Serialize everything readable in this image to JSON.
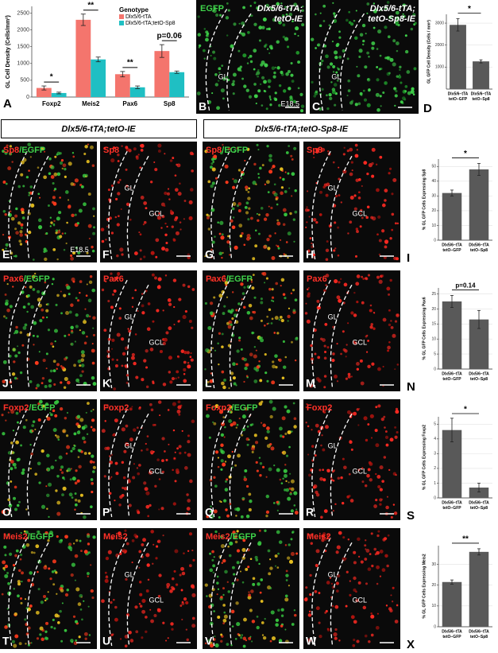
{
  "chart_data": [
    {
      "type": "bar",
      "panel": "A",
      "ylabel": "GL Cell Density (Cells/mm²)",
      "categories": [
        "Foxp2",
        "Meis2",
        "Pax6",
        "Sp8"
      ],
      "series": [
        {
          "name": "Dlx5/6-tTA",
          "color": "#f4756d",
          "values": [
            270,
            2300,
            680,
            1370
          ],
          "errors": [
            60,
            170,
            80,
            190
          ]
        },
        {
          "name": "Dlx5/6-tTA;tetO-Sp8",
          "color": "#1fbfc3",
          "values": [
            120,
            1120,
            290,
            740
          ],
          "errors": [
            25,
            70,
            40,
            35
          ]
        }
      ],
      "annotations": [
        "*",
        "**",
        "**",
        "p=0.06"
      ],
      "legend_title": "Genotype",
      "legend": "top-right",
      "ylim": [
        0,
        2700
      ],
      "yticks": [
        0,
        500,
        1000,
        1500,
        2000,
        2500
      ],
      "grid": false
    },
    {
      "type": "bar",
      "panel": "D",
      "ylabel": "GL GFP Cell Density (Cells / mm²)",
      "categories": [
        [
          "Dlx5/6−tTA",
          "tetO−GFP"
        ],
        [
          "Dlx5/6−tTA",
          "tetO−Sp8"
        ]
      ],
      "values": [
        2920,
        1260
      ],
      "errors": [
        280,
        70
      ],
      "color": "#595959",
      "annotation": "*",
      "ylim": [
        0,
        3400
      ],
      "yticks": [
        1000,
        2000,
        3000
      ],
      "grid": true
    },
    {
      "type": "bar",
      "panel": "I",
      "ylabel": "% GL GFP Cells Expressing Sp8",
      "categories": [
        [
          "Dlx5/6−tTA",
          "tetO−GFP"
        ],
        [
          "Dlx5/6−tTA",
          "tetO−Sp8"
        ]
      ],
      "values": [
        32,
        48
      ],
      "errors": [
        2,
        4
      ],
      "color": "#595959",
      "annotation": "*",
      "ylim": [
        0,
        55
      ],
      "yticks": [
        0,
        10,
        20,
        30,
        40,
        50
      ],
      "grid": true
    },
    {
      "type": "bar",
      "panel": "N",
      "ylabel": "% GL GFP Cells Expressing Pax6",
      "categories": [
        [
          "Dlx5/6−tTA",
          "tetO−GFP"
        ],
        [
          "Dlx5/6−tTA",
          "tetO−Sp8"
        ]
      ],
      "values": [
        22.5,
        16.5
      ],
      "errors": [
        2,
        3
      ],
      "color": "#595959",
      "annotation": "p=0.14",
      "ylim": [
        0,
        27
      ],
      "yticks": [
        0,
        5,
        10,
        15,
        20,
        25
      ],
      "grid": true
    },
    {
      "type": "bar",
      "panel": "S",
      "ylabel": "% GL GFP Cells Expressing Foxp2",
      "categories": [
        [
          "Dlx5/6−tTA",
          "tetO−GFP"
        ],
        [
          "Dlx5/6−tTA",
          "tetO−Sp8"
        ]
      ],
      "values": [
        4.6,
        0.7
      ],
      "errors": [
        0.8,
        0.3
      ],
      "color": "#595959",
      "annotation": "*",
      "ylim": [
        0,
        5.5
      ],
      "yticks": [
        0,
        1,
        2,
        3,
        4,
        5
      ],
      "grid": true
    },
    {
      "type": "bar",
      "panel": "X",
      "ylabel": "% GL GFP Cells Expressing Meis2",
      "categories": [
        [
          "Dlx5/6−tTA",
          "tetO−GFP"
        ],
        [
          "Dlx5/6−tTA",
          "tetO−Sp8"
        ]
      ],
      "values": [
        21.5,
        36
      ],
      "errors": [
        1,
        1.5
      ],
      "color": "#595959",
      "annotation": "**",
      "ylim": [
        0,
        39
      ],
      "yticks": [
        0,
        10,
        20,
        30
      ],
      "grid": true
    }
  ],
  "top_images": [
    {
      "letter": "B",
      "channel": "EGFP",
      "genotype": [
        "Dlx5/6-tTA;",
        "tetO-IE"
      ],
      "region": "GL",
      "age": "E18.5"
    },
    {
      "letter": "C",
      "genotype": [
        "Dlx5/6-tTA;",
        "tetO-Sp8-IE"
      ],
      "region": "GL"
    }
  ],
  "headers": [
    "Dlx5/6-tTA;tetO-IE",
    "Dlx5/6-tTA;tetO-Sp8-IE"
  ],
  "rows": [
    {
      "panels": [
        {
          "letter": "E",
          "title": [
            "Sp8",
            "/EGFP"
          ],
          "labels": [
            "E18.5"
          ]
        },
        {
          "letter": "F",
          "title": [
            "Sp8"
          ],
          "labels": [
            "GL",
            "GCL"
          ]
        },
        {
          "letter": "G",
          "title": [
            "Sp8",
            "/EGFP"
          ],
          "labels": []
        },
        {
          "letter": "H",
          "title": [
            "Sp8"
          ],
          "labels": [
            "GL",
            "GCL"
          ]
        }
      ]
    },
    {
      "panels": [
        {
          "letter": "J",
          "title": [
            "Pax6",
            "/EGFP"
          ],
          "labels": []
        },
        {
          "letter": "K",
          "title": [
            "Pax6"
          ],
          "labels": [
            "GL",
            "GCL"
          ]
        },
        {
          "letter": "L",
          "title": [
            "Pax6",
            "/EGFP"
          ],
          "labels": []
        },
        {
          "letter": "M",
          "title": [
            "Pax6"
          ],
          "labels": [
            "GL",
            "GCL"
          ]
        }
      ]
    },
    {
      "panels": [
        {
          "letter": "O",
          "title": [
            "Foxp2",
            "/EGFP"
          ],
          "labels": []
        },
        {
          "letter": "P",
          "title": [
            "Foxp2"
          ],
          "labels": [
            "GL",
            "GCL"
          ]
        },
        {
          "letter": "Q",
          "title": [
            "Foxp2",
            "/EGFP"
          ],
          "labels": []
        },
        {
          "letter": "R",
          "title": [
            "Foxp2"
          ],
          "labels": [
            "GL",
            "GCL"
          ]
        }
      ]
    },
    {
      "panels": [
        {
          "letter": "T",
          "title": [
            "Meis2",
            "/EGFP"
          ],
          "labels": []
        },
        {
          "letter": "U",
          "title": [
            "Meis2"
          ],
          "labels": [
            "GL",
            "GCL"
          ]
        },
        {
          "letter": "V",
          "title": [
            "Meis2",
            "/EGFP"
          ],
          "labels": []
        },
        {
          "letter": "W",
          "title": [
            "Meis2"
          ],
          "labels": [
            "GL",
            "GCL"
          ]
        }
      ]
    }
  ]
}
